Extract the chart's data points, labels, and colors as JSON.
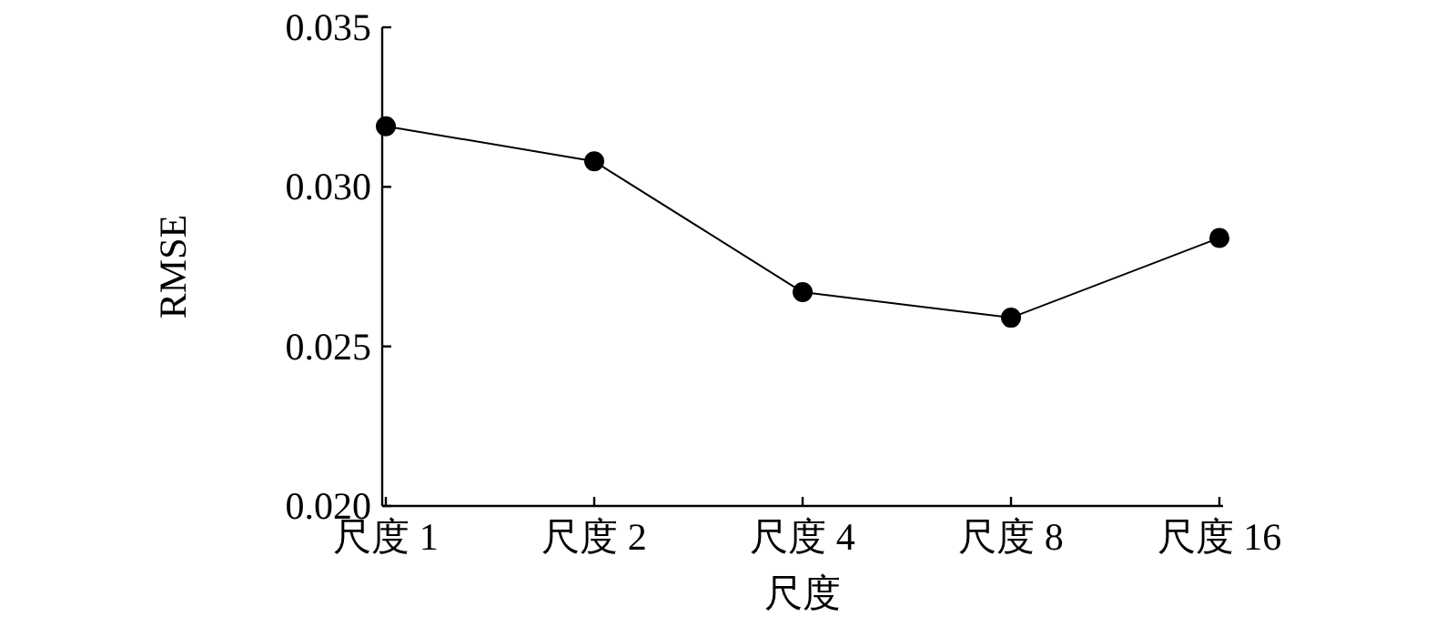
{
  "chart_data": {
    "type": "line",
    "xlabel": "尺度",
    "ylabel": "RMSE",
    "categories": [
      "尺度 1",
      "尺度 2",
      "尺度 4",
      "尺度 8",
      "尺度 16"
    ],
    "series": [
      {
        "color": "#000000",
        "values": [
          0.0319,
          0.0308,
          0.0267,
          0.0259,
          0.0284
        ]
      }
    ],
    "ylim": [
      0.02,
      0.035
    ],
    "yticks": [
      {
        "value": 0.02,
        "label": "0.020"
      },
      {
        "value": 0.025,
        "label": "0.025"
      },
      {
        "value": 0.03,
        "label": "0.030"
      },
      {
        "value": 0.035,
        "label": "0.035"
      }
    ],
    "marker": "circle",
    "line_style": "solid",
    "grid": false
  }
}
